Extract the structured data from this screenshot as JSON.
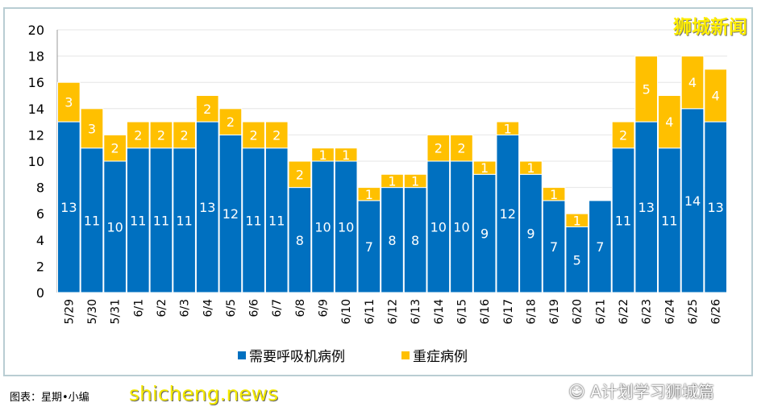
{
  "brand": "狮城新闻",
  "caption": "图表：星期•小编",
  "watermark": "shicheng.news",
  "wechat_watermark": "A计划学习狮城篇",
  "wechat_icon": "wechat-icon",
  "chart_data": {
    "type": "bar",
    "stacked": true,
    "categories": [
      "5/29",
      "5/30",
      "5/31",
      "6/1",
      "6/2",
      "6/3",
      "6/4",
      "6/5",
      "6/6",
      "6/7",
      "6/8",
      "6/9",
      "6/10",
      "6/11",
      "6/12",
      "6/13",
      "6/14",
      "6/15",
      "6/16",
      "6/17",
      "6/18",
      "6/19",
      "6/20",
      "6/21",
      "6/22",
      "6/23",
      "6/24",
      "6/25",
      "6/26"
    ],
    "series": [
      {
        "name": "需要呼吸机病例",
        "color": "#0070c0",
        "values": [
          13,
          11,
          10,
          11,
          11,
          11,
          13,
          12,
          11,
          11,
          8,
          10,
          10,
          7,
          8,
          8,
          10,
          10,
          9,
          12,
          9,
          7,
          5,
          7,
          11,
          13,
          11,
          14,
          13
        ]
      },
      {
        "name": "重症病例",
        "color": "#ffc000",
        "values": [
          3,
          3,
          2,
          2,
          2,
          2,
          2,
          2,
          2,
          2,
          2,
          1,
          1,
          1,
          1,
          1,
          2,
          2,
          1,
          1,
          1,
          1,
          1,
          0,
          2,
          5,
          4,
          4,
          4
        ]
      }
    ],
    "ylim": [
      0,
      20
    ],
    "yticks": [
      0,
      2,
      4,
      6,
      8,
      10,
      12,
      14,
      16,
      18,
      20
    ],
    "grid": true,
    "legend": "bottom"
  }
}
